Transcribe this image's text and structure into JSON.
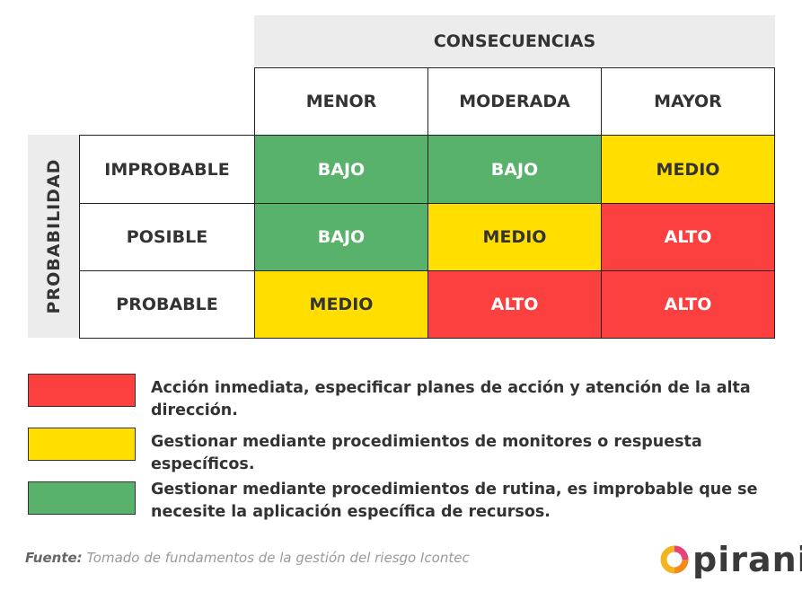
{
  "title_columns": "CONSECUENCIAS",
  "title_rows": "PROBABILIDAD",
  "columns": [
    "MENOR",
    "MODERADA",
    "MAYOR"
  ],
  "rows": [
    {
      "label": "IMPROBABLE",
      "cells": [
        "BAJO",
        "BAJO",
        "MEDIO"
      ]
    },
    {
      "label": "POSIBLE",
      "cells": [
        "BAJO",
        "MEDIO",
        "ALTO"
      ]
    },
    {
      "label": "PROBABLE",
      "cells": [
        "MEDIO",
        "ALTO",
        "ALTO"
      ]
    }
  ],
  "colors": {
    "BAJO": "#58b26c",
    "MEDIO": "#ffde00",
    "ALTO": "#fc3f3f",
    "header_bg": "#ececec"
  },
  "legend": [
    {
      "color": "#fc3f3f",
      "text": "Acción inmediata, especificar planes de acción y atención de la alta dirección."
    },
    {
      "color": "#ffde00",
      "text": "Gestionar mediante procedimientos de monitores o respuesta específicos."
    },
    {
      "color": "#58b26c",
      "text": "Gestionar mediante procedimientos de rutina, es improbable que se necesite la aplicación específica de recursos."
    }
  ],
  "source": {
    "label": "Fuente:",
    "text": "Tomado de fundamentos de la gestión del riesgo Icontec"
  },
  "logo": {
    "text": "pirani"
  }
}
